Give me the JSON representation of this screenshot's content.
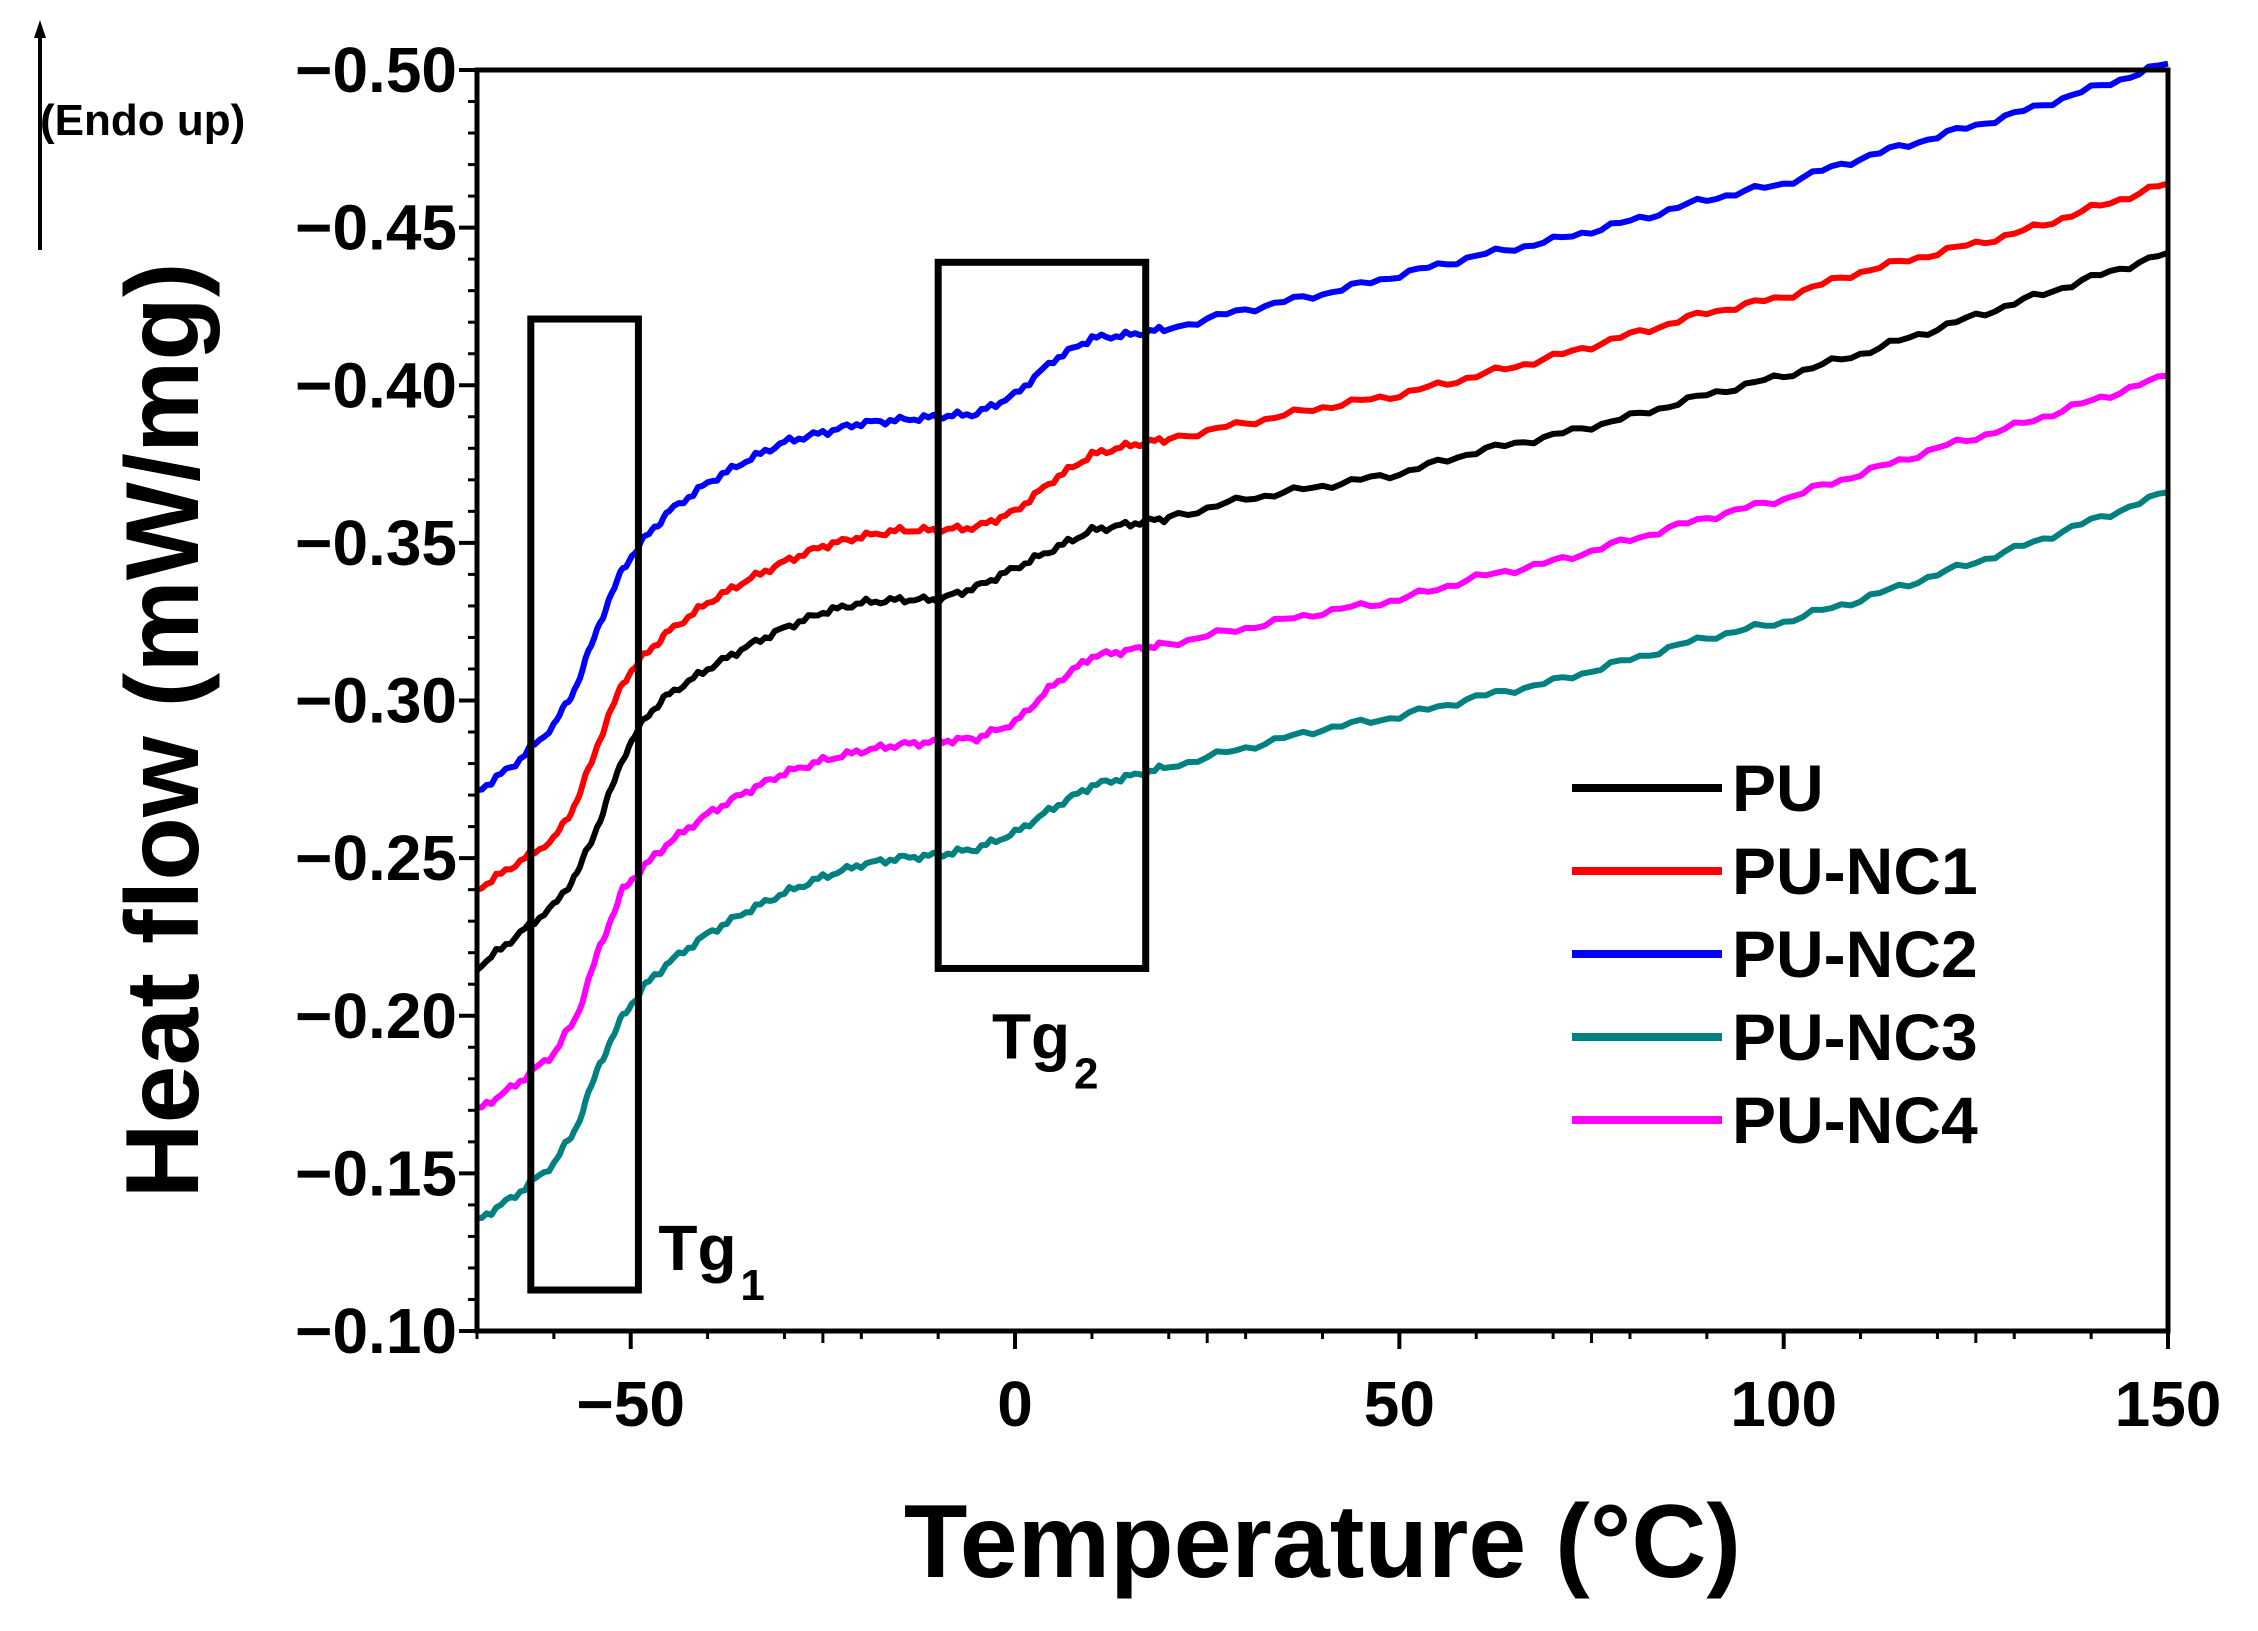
{
  "chart_data": {
    "type": "line",
    "title": "",
    "xlabel": "Temperature (°C)",
    "ylabel": "Heat flow (mW/mg)",
    "xlim": [
      -70,
      150
    ],
    "ylim": [
      -0.1,
      -0.5
    ],
    "y_axis_inverted": true,
    "x_ticks": [
      -50,
      0,
      50,
      100,
      150
    ],
    "y_ticks": [
      -0.1,
      -0.15,
      -0.2,
      -0.25,
      -0.3,
      -0.35,
      -0.4,
      -0.45,
      -0.5
    ],
    "x_tick_labels": [
      "−50",
      "0",
      "50",
      "100",
      "150"
    ],
    "y_tick_labels": [
      "−0.10",
      "−0.15",
      "−0.20",
      "−0.25",
      "−0.30",
      "−0.35",
      "−0.40",
      "−0.45",
      "−0.50"
    ],
    "grid": false,
    "legend_position": "right",
    "annotation": "(Endo up)",
    "tg_labels": [
      {
        "main": "Tg",
        "sub": "1",
        "x_range": [
          -63,
          -49
        ],
        "y_range": [
          -0.113,
          -0.421
        ]
      },
      {
        "main": "Tg",
        "sub": "2",
        "x_range": [
          -10,
          17
        ],
        "y_range": [
          -0.215,
          -0.439
        ]
      }
    ],
    "series": [
      {
        "name": "PU",
        "color": "#000000",
        "x": [
          -70,
          -65,
          -60,
          -57,
          -54,
          -51,
          -48,
          -45,
          -40,
          -35,
          -30,
          -25,
          -20,
          -15,
          -10,
          -5,
          0,
          5,
          10,
          15,
          20,
          30,
          40,
          50,
          60,
          70,
          80,
          90,
          100,
          110,
          120,
          130,
          140,
          150
        ],
        "y": [
          -0.215,
          -0.225,
          -0.235,
          -0.245,
          -0.262,
          -0.282,
          -0.295,
          -0.302,
          -0.31,
          -0.317,
          -0.323,
          -0.328,
          -0.331,
          -0.332,
          -0.332,
          -0.336,
          -0.342,
          -0.348,
          -0.354,
          -0.356,
          -0.358,
          -0.364,
          -0.368,
          -0.372,
          -0.379,
          -0.384,
          -0.39,
          -0.397,
          -0.403,
          -0.41,
          -0.418,
          -0.426,
          -0.434,
          -0.442
        ]
      },
      {
        "name": "PU-NC1",
        "color": "#ff0000",
        "x": [
          -70,
          -65,
          -60,
          -57,
          -54,
          -51,
          -48,
          -45,
          -40,
          -35,
          -30,
          -25,
          -20,
          -15,
          -10,
          -5,
          0,
          5,
          10,
          15,
          20,
          30,
          40,
          50,
          60,
          70,
          80,
          90,
          100,
          110,
          120,
          130,
          140,
          150
        ],
        "y": [
          -0.24,
          -0.248,
          -0.256,
          -0.268,
          -0.288,
          -0.306,
          -0.315,
          -0.322,
          -0.331,
          -0.338,
          -0.344,
          -0.349,
          -0.352,
          -0.354,
          -0.354,
          -0.355,
          -0.36,
          -0.37,
          -0.378,
          -0.381,
          -0.383,
          -0.388,
          -0.393,
          -0.397,
          -0.403,
          -0.409,
          -0.416,
          -0.423,
          -0.428,
          -0.436,
          -0.442,
          -0.448,
          -0.456,
          -0.464
        ]
      },
      {
        "name": "PU-NC2",
        "color": "#0000ff",
        "x": [
          -70,
          -65,
          -60,
          -57,
          -54,
          -51,
          -48,
          -45,
          -40,
          -35,
          -30,
          -25,
          -20,
          -15,
          -10,
          -5,
          0,
          5,
          10,
          15,
          20,
          30,
          40,
          50,
          60,
          70,
          80,
          90,
          100,
          110,
          120,
          130,
          140,
          150
        ],
        "y": [
          -0.271,
          -0.28,
          -0.292,
          -0.305,
          -0.325,
          -0.342,
          -0.352,
          -0.36,
          -0.369,
          -0.376,
          -0.382,
          -0.385,
          -0.388,
          -0.389,
          -0.39,
          -0.391,
          -0.397,
          -0.408,
          -0.415,
          -0.416,
          -0.418,
          -0.424,
          -0.429,
          -0.435,
          -0.441,
          -0.446,
          -0.452,
          -0.459,
          -0.464,
          -0.472,
          -0.479,
          -0.486,
          -0.494,
          -0.502
        ]
      },
      {
        "name": "PU-NC3",
        "color": "#008080",
        "x": [
          -70,
          -65,
          -60,
          -57,
          -54,
          -51,
          -48,
          -45,
          -40,
          -35,
          -30,
          -25,
          -20,
          -15,
          -10,
          -5,
          0,
          5,
          10,
          15,
          20,
          30,
          40,
          50,
          60,
          70,
          80,
          90,
          100,
          110,
          120,
          130,
          140,
          150
        ],
        "y": [
          -0.135,
          -0.143,
          -0.153,
          -0.165,
          -0.185,
          -0.2,
          -0.21,
          -0.217,
          -0.226,
          -0.233,
          -0.239,
          -0.244,
          -0.248,
          -0.25,
          -0.251,
          -0.253,
          -0.258,
          -0.266,
          -0.273,
          -0.276,
          -0.279,
          -0.285,
          -0.291,
          -0.295,
          -0.301,
          -0.306,
          -0.313,
          -0.32,
          -0.325,
          -0.332,
          -0.34,
          -0.348,
          -0.357,
          -0.366
        ]
      },
      {
        "name": "PU-NC4",
        "color": "#ff00ff",
        "x": [
          -70,
          -65,
          -60,
          -57,
          -54,
          -51,
          -48,
          -45,
          -40,
          -35,
          -30,
          -25,
          -20,
          -15,
          -10,
          -5,
          0,
          5,
          10,
          15,
          20,
          30,
          40,
          50,
          60,
          70,
          80,
          90,
          100,
          110,
          120,
          130,
          140,
          150
        ],
        "y": [
          -0.17,
          -0.178,
          -0.188,
          -0.2,
          -0.222,
          -0.24,
          -0.248,
          -0.255,
          -0.264,
          -0.271,
          -0.277,
          -0.281,
          -0.284,
          -0.286,
          -0.287,
          -0.288,
          -0.293,
          -0.305,
          -0.314,
          -0.316,
          -0.318,
          -0.323,
          -0.328,
          -0.332,
          -0.339,
          -0.344,
          -0.351,
          -0.358,
          -0.364,
          -0.372,
          -0.38,
          -0.387,
          -0.395,
          -0.403
        ]
      }
    ]
  }
}
